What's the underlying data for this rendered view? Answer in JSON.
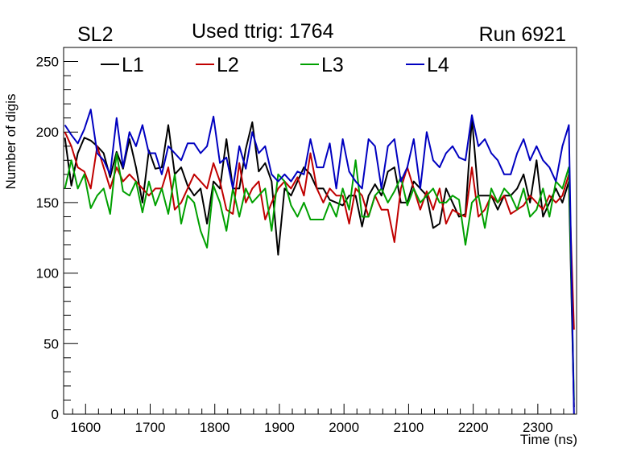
{
  "header": {
    "left": "SL2",
    "center": "Used ttrig: 1764",
    "right": "Run 6921"
  },
  "chart_data": {
    "type": "line",
    "title": "Used ttrig: 1764",
    "xlabel": "Time (ns)",
    "ylabel": "Number of digis",
    "xlim": [
      1566,
      2360
    ],
    "ylim": [
      0,
      260
    ],
    "x_ticks": [
      1600,
      1700,
      1800,
      1900,
      2000,
      2100,
      2200,
      2300
    ],
    "y_ticks": [
      0,
      50,
      100,
      150,
      200,
      250
    ],
    "legend_position": "top",
    "x": [
      1568,
      1578,
      1588,
      1598,
      1608,
      1618,
      1628,
      1638,
      1648,
      1658,
      1668,
      1678,
      1688,
      1698,
      1708,
      1718,
      1728,
      1738,
      1748,
      1758,
      1768,
      1778,
      1788,
      1798,
      1808,
      1818,
      1828,
      1838,
      1848,
      1858,
      1868,
      1878,
      1888,
      1898,
      1908,
      1918,
      1928,
      1938,
      1948,
      1958,
      1968,
      1978,
      1988,
      1998,
      2008,
      2018,
      2028,
      2038,
      2048,
      2058,
      2068,
      2078,
      2088,
      2098,
      2108,
      2118,
      2128,
      2138,
      2148,
      2158,
      2168,
      2178,
      2188,
      2198,
      2208,
      2218,
      2228,
      2238,
      2248,
      2258,
      2268,
      2278,
      2288,
      2298,
      2308,
      2318,
      2328,
      2338,
      2348,
      2356
    ],
    "series": [
      {
        "name": "L1",
        "color": "#000000",
        "values": [
          196,
          162,
          185,
          196,
          194,
          190,
          185,
          168,
          186,
          174,
          195,
          175,
          150,
          187,
          174,
          175,
          205,
          170,
          175,
          162,
          155,
          160,
          135,
          165,
          160,
          195,
          160,
          160,
          188,
          207,
          172,
          178,
          165,
          113,
          160,
          155,
          165,
          175,
          170,
          160,
          160,
          152,
          150,
          148,
          155,
          155,
          133,
          155,
          163,
          155,
          172,
          175,
          150,
          150,
          165,
          160,
          155,
          132,
          135,
          160,
          150,
          140,
          142,
          210,
          155,
          155,
          155,
          145,
          155,
          155,
          160,
          170,
          150,
          180,
          140,
          150,
          160,
          150,
          165,
          5
        ]
      },
      {
        "name": "L2",
        "color": "#c00000",
        "values": [
          200,
          190,
          175,
          172,
          160,
          190,
          175,
          160,
          175,
          165,
          170,
          165,
          160,
          155,
          160,
          160,
          175,
          145,
          150,
          160,
          170,
          165,
          160,
          178,
          165,
          145,
          142,
          178,
          150,
          160,
          165,
          138,
          150,
          160,
          165,
          160,
          168,
          155,
          185,
          160,
          150,
          160,
          155,
          155,
          135,
          160,
          155,
          140,
          155,
          145,
          145,
          122,
          160,
          175,
          160,
          145,
          158,
          145,
          160,
          135,
          145,
          142,
          140,
          175,
          140,
          145,
          155,
          150,
          155,
          142,
          145,
          148,
          155,
          150,
          145,
          155,
          150,
          155,
          170,
          60
        ]
      },
      {
        "name": "L3",
        "color": "#00a000",
        "values": [
          160,
          180,
          160,
          170,
          146,
          155,
          160,
          142,
          185,
          158,
          155,
          165,
          143,
          165,
          148,
          160,
          142,
          170,
          135,
          155,
          150,
          130,
          118,
          162,
          150,
          130,
          160,
          140,
          160,
          150,
          155,
          160,
          130,
          170,
          165,
          148,
          140,
          150,
          138,
          138,
          138,
          150,
          140,
          160,
          145,
          180,
          140,
          140,
          155,
          160,
          150,
          158,
          168,
          148,
          160,
          150,
          155,
          160,
          150,
          150,
          155,
          152,
          120,
          150,
          155,
          132,
          160,
          150,
          160,
          155,
          145,
          160,
          140,
          145,
          160,
          140,
          165,
          160,
          175,
          10
        ]
      },
      {
        "name": "L4",
        "color": "#0000c0",
        "values": [
          205,
          198,
          192,
          202,
          216,
          185,
          180,
          170,
          210,
          175,
          200,
          190,
          205,
          185,
          185,
          170,
          190,
          185,
          180,
          192,
          192,
          185,
          190,
          211,
          178,
          182,
          160,
          190,
          174,
          200,
          185,
          190,
          170,
          165,
          170,
          165,
          172,
          170,
          195,
          175,
          175,
          192,
          160,
          195,
          172,
          165,
          160,
          195,
          190,
          160,
          190,
          195,
          165,
          175,
          195,
          160,
          200,
          180,
          175,
          185,
          190,
          182,
          180,
          212,
          190,
          195,
          185,
          180,
          170,
          170,
          185,
          195,
          180,
          190,
          180,
          175,
          165,
          190,
          205,
          0
        ]
      }
    ]
  }
}
